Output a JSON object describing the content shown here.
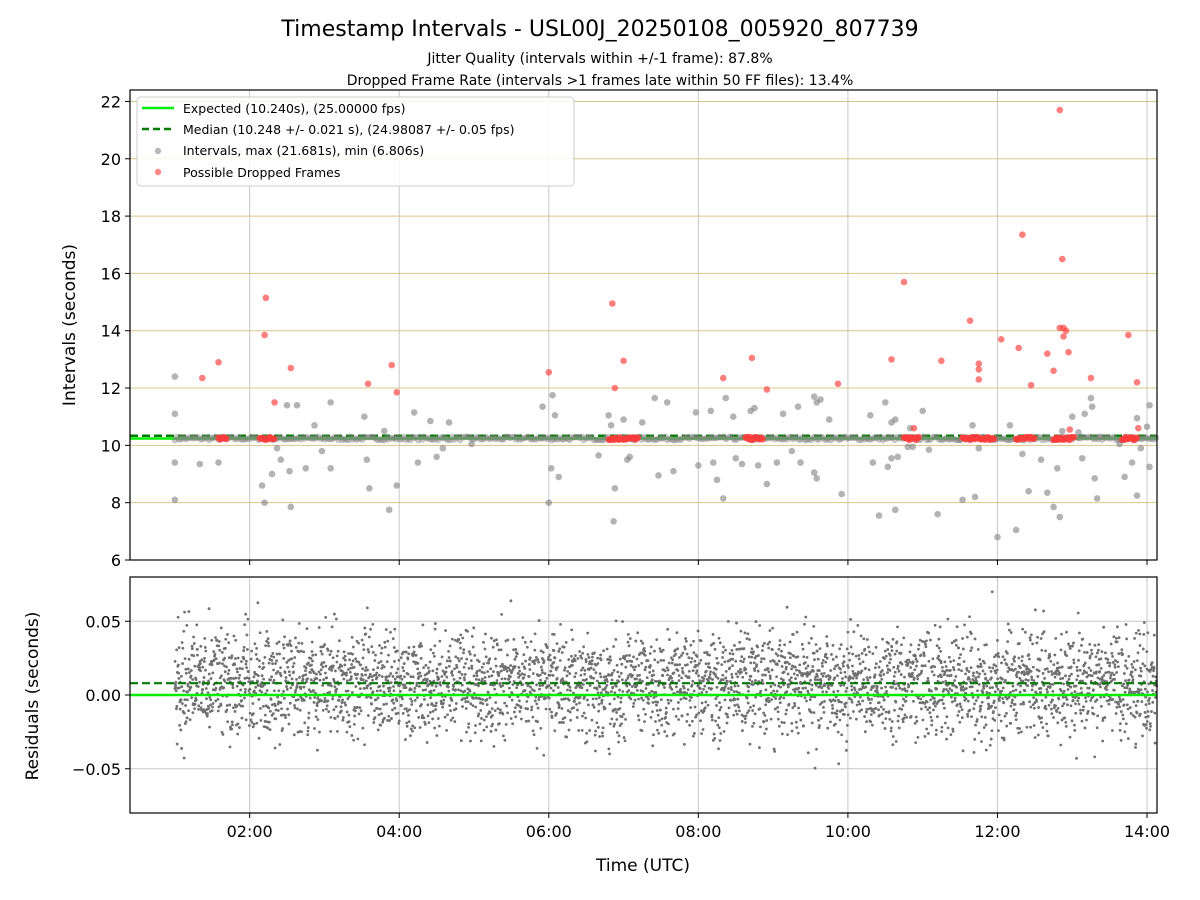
{
  "figure": {
    "title": "Timestamp Intervals - USL00J_20250108_005920_807739",
    "subtitle_1": "Jitter Quality (intervals within +/-1 frame): 87.8%",
    "subtitle_2": "Dropped Frame Rate (intervals >1 frames late within 50 FF files): 13.4%"
  },
  "colors": {
    "expected": "#00ee00",
    "median": "#007a00",
    "intervals": "#808080",
    "dropped": "#ff3b3b",
    "hgrid": "#d8c489",
    "vgrid": "#c8c8c8"
  },
  "chart_data": [
    {
      "type": "scatter",
      "panel": "intervals",
      "xlabel": "",
      "ylabel": "Intervals (seconds)",
      "ylim": [
        6,
        22.4
      ],
      "xlim": [
        "00:24",
        "14:08"
      ],
      "yticks": [
        "6",
        "8",
        "10",
        "12",
        "14",
        "16",
        "18",
        "20",
        "22"
      ],
      "grid": true,
      "legend_position": "top-left",
      "legend": [
        "Expected (10.240s), (25.00000 fps)",
        "Median (10.248 +/- 0.021 s), (24.98087 +/- 0.05 fps)",
        "Intervals, max (21.681s), min (6.806s)",
        "Possible Dropped Frames"
      ],
      "expected_value": 10.24,
      "median_value": 10.248,
      "series": [
        {
          "name": "Intervals, max (21.681s), min (6.806s)",
          "points": [
            [
              "01:00",
              12.4
            ],
            [
              "01:00",
              11.1
            ],
            [
              "01:00",
              9.4
            ],
            [
              "01:00",
              8.1
            ],
            [
              "01:20",
              9.35
            ],
            [
              "01:35",
              9.4
            ],
            [
              "02:10",
              8.6
            ],
            [
              "02:12",
              8.0
            ],
            [
              "02:18",
              9.0
            ],
            [
              "02:22",
              9.9
            ],
            [
              "02:25",
              9.5
            ],
            [
              "02:30",
              11.4
            ],
            [
              "02:32",
              9.1
            ],
            [
              "02:33",
              7.85
            ],
            [
              "02:38",
              11.4
            ],
            [
              "02:45",
              9.2
            ],
            [
              "02:52",
              10.7
            ],
            [
              "02:58",
              9.8
            ],
            [
              "03:05",
              11.5
            ],
            [
              "03:05",
              9.2
            ],
            [
              "03:32",
              11.0
            ],
            [
              "03:34",
              9.5
            ],
            [
              "03:36",
              8.5
            ],
            [
              "03:48",
              10.5
            ],
            [
              "03:52",
              7.75
            ],
            [
              "03:58",
              8.6
            ],
            [
              "04:12",
              11.15
            ],
            [
              "04:15",
              9.4
            ],
            [
              "04:25",
              10.85
            ],
            [
              "04:30",
              9.6
            ],
            [
              "04:35",
              9.9
            ],
            [
              "04:40",
              10.8
            ],
            [
              "04:58",
              10.05
            ],
            [
              "05:55",
              11.35
            ],
            [
              "06:00",
              8.0
            ],
            [
              "06:02",
              9.2
            ],
            [
              "06:03",
              11.75
            ],
            [
              "06:05",
              11.05
            ],
            [
              "06:08",
              8.9
            ],
            [
              "06:40",
              9.65
            ],
            [
              "06:48",
              11.05
            ],
            [
              "06:50",
              10.7
            ],
            [
              "06:53",
              8.5
            ],
            [
              "06:52",
              7.35
            ],
            [
              "07:00",
              10.9
            ],
            [
              "07:03",
              9.5
            ],
            [
              "07:05",
              9.6
            ],
            [
              "07:15",
              10.8
            ],
            [
              "07:25",
              11.65
            ],
            [
              "07:28",
              8.95
            ],
            [
              "07:35",
              11.5
            ],
            [
              "07:40",
              9.1
            ],
            [
              "07:58",
              11.15
            ],
            [
              "08:00",
              9.3
            ],
            [
              "08:10",
              11.2
            ],
            [
              "08:12",
              9.4
            ],
            [
              "08:15",
              8.8
            ],
            [
              "08:20",
              8.15
            ],
            [
              "08:22",
              11.65
            ],
            [
              "08:28",
              11.0
            ],
            [
              "08:30",
              9.55
            ],
            [
              "08:35",
              9.35
            ],
            [
              "08:42",
              11.2
            ],
            [
              "08:45",
              11.3
            ],
            [
              "08:48",
              9.3
            ],
            [
              "08:55",
              8.65
            ],
            [
              "09:03",
              9.4
            ],
            [
              "09:08",
              11.1
            ],
            [
              "09:15",
              9.8
            ],
            [
              "09:20",
              11.35
            ],
            [
              "09:22",
              9.4
            ],
            [
              "09:33",
              11.7
            ],
            [
              "09:33",
              9.05
            ],
            [
              "09:35",
              11.5
            ],
            [
              "09:35",
              8.85
            ],
            [
              "09:38",
              11.6
            ],
            [
              "09:45",
              10.9
            ],
            [
              "09:55",
              8.3
            ],
            [
              "10:18",
              11.05
            ],
            [
              "10:20",
              9.4
            ],
            [
              "10:25",
              7.55
            ],
            [
              "10:30",
              11.5
            ],
            [
              "10:32",
              9.25
            ],
            [
              "10:35",
              10.8
            ],
            [
              "10:35",
              9.55
            ],
            [
              "10:38",
              10.9
            ],
            [
              "10:40",
              9.6
            ],
            [
              "10:38",
              7.75
            ],
            [
              "10:48",
              9.95
            ],
            [
              "10:50",
              10.6
            ],
            [
              "10:52",
              9.95
            ],
            [
              "11:00",
              11.2
            ],
            [
              "11:05",
              9.85
            ],
            [
              "11:12",
              7.6
            ],
            [
              "11:30",
              10.2
            ],
            [
              "11:32",
              8.1
            ],
            [
              "11:40",
              10.7
            ],
            [
              "11:42",
              8.2
            ],
            [
              "11:45",
              9.9
            ],
            [
              "11:58",
              10.2
            ],
            [
              "12:00",
              6.8
            ],
            [
              "12:10",
              10.7
            ],
            [
              "12:15",
              7.05
            ],
            [
              "12:20",
              9.7
            ],
            [
              "12:25",
              8.4
            ],
            [
              "12:35",
              9.5
            ],
            [
              "12:40",
              8.35
            ],
            [
              "12:45",
              7.85
            ],
            [
              "12:48",
              9.2
            ],
            [
              "12:50",
              7.5
            ],
            [
              "12:52",
              10.5
            ],
            [
              "13:00",
              11.0
            ],
            [
              "13:05",
              10.45
            ],
            [
              "13:08",
              9.55
            ],
            [
              "13:10",
              11.1
            ],
            [
              "13:15",
              11.65
            ],
            [
              "13:16",
              11.35
            ],
            [
              "13:18",
              8.85
            ],
            [
              "13:20",
              8.15
            ],
            [
              "13:22",
              10.3
            ],
            [
              "13:38",
              10.05
            ],
            [
              "13:42",
              8.9
            ],
            [
              "13:48",
              9.4
            ],
            [
              "13:52",
              10.95
            ],
            [
              "13:52",
              8.25
            ],
            [
              "13:55",
              9.9
            ],
            [
              "14:00",
              10.65
            ],
            [
              "14:02",
              11.4
            ],
            [
              "14:02",
              9.25
            ]
          ]
        },
        {
          "name": "Possible Dropped Frames",
          "points": [
            [
              "01:22",
              12.35
            ],
            [
              "01:35",
              12.9
            ],
            [
              "02:13",
              15.15
            ],
            [
              "02:12",
              13.85
            ],
            [
              "02:20",
              11.5
            ],
            [
              "02:33",
              12.7
            ],
            [
              "03:35",
              12.15
            ],
            [
              "03:54",
              12.8
            ],
            [
              "03:58",
              11.85
            ],
            [
              "06:00",
              12.55
            ],
            [
              "06:51",
              14.95
            ],
            [
              "06:53",
              12.0
            ],
            [
              "07:00",
              12.95
            ],
            [
              "08:20",
              12.35
            ],
            [
              "08:43",
              13.05
            ],
            [
              "08:55",
              11.95
            ],
            [
              "09:52",
              12.15
            ],
            [
              "10:35",
              13.0
            ],
            [
              "10:45",
              15.7
            ],
            [
              "10:53",
              10.6
            ],
            [
              "11:15",
              12.95
            ],
            [
              "11:38",
              14.35
            ],
            [
              "11:45",
              12.85
            ],
            [
              "11:45",
              12.65
            ],
            [
              "11:45",
              12.3
            ],
            [
              "12:03",
              13.7
            ],
            [
              "12:17",
              13.4
            ],
            [
              "12:20",
              17.35
            ],
            [
              "12:27",
              12.1
            ],
            [
              "12:40",
              13.2
            ],
            [
              "12:45",
              12.6
            ],
            [
              "12:50",
              21.7
            ],
            [
              "12:50",
              14.1
            ],
            [
              "12:52",
              16.5
            ],
            [
              "12:53",
              14.1
            ],
            [
              "12:53",
              13.8
            ],
            [
              "12:55",
              14.0
            ],
            [
              "12:57",
              13.25
            ],
            [
              "12:58",
              10.55
            ],
            [
              "13:15",
              12.35
            ],
            [
              "13:45",
              13.85
            ],
            [
              "13:52",
              12.2
            ],
            [
              "13:53",
              10.6
            ]
          ],
          "clusters_at": 10.24,
          "cluster_ranges": [
            [
              "01:35",
              "01:42"
            ],
            [
              "02:08",
              "02:20"
            ],
            [
              "06:48",
              "07:12"
            ],
            [
              "08:38",
              "08:52"
            ],
            [
              "10:45",
              "10:57"
            ],
            [
              "11:32",
              "11:58"
            ],
            [
              "12:15",
              "12:30"
            ],
            [
              "12:45",
              "13:02"
            ],
            [
              "13:40",
              "13:52"
            ]
          ]
        }
      ]
    },
    {
      "type": "scatter",
      "panel": "residuals",
      "xlabel": "Time (UTC)",
      "ylabel": "Residuals (seconds)",
      "ylim": [
        -0.08,
        0.08
      ],
      "xlim": [
        "00:24",
        "14:08"
      ],
      "xticks": [
        "02:00",
        "04:00",
        "06:00",
        "08:00",
        "10:00",
        "12:00",
        "14:00"
      ],
      "yticks": [
        "−0.05",
        "0.00",
        "0.05"
      ],
      "grid": true,
      "expected_value": 0.0,
      "median_value": 0.008,
      "series": [
        {
          "name": "",
          "description_range": [
            "01:00",
            "14:08"
          ],
          "spread_std": 0.021,
          "center": 0.008
        }
      ]
    }
  ]
}
